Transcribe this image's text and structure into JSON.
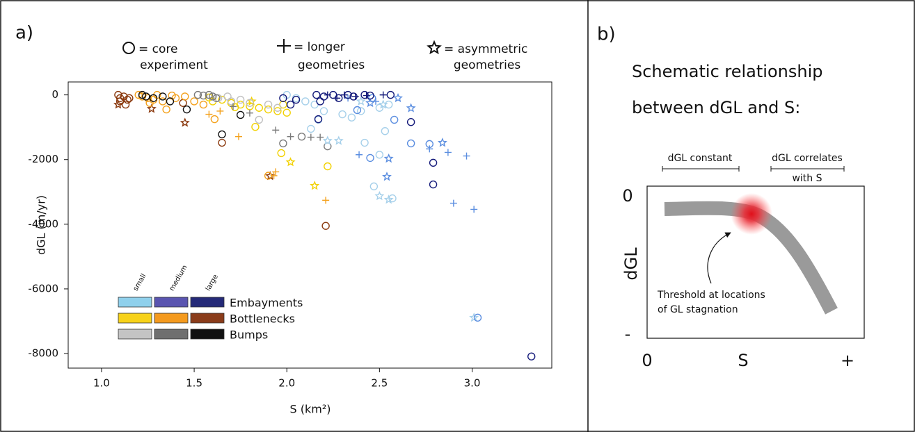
{
  "chart_data": {
    "type": "scatter",
    "panel_label": "a)",
    "xlabel": "S (km²)",
    "ylabel": "dGL (m/yr)",
    "xlim": [
      0.82,
      3.43
    ],
    "ylim": [
      -8450,
      400
    ],
    "xticks": [
      {
        "value": 1,
        "label": "1.0"
      },
      1.5,
      {
        "value": 2,
        "label": "2.0"
      },
      2.5,
      {
        "value": 3,
        "label": "3.0"
      }
    ],
    "yticks": [
      0,
      -2000,
      -4000,
      -6000,
      -8000
    ],
    "marker_legend": [
      {
        "marker": "circle",
        "lines": [
          "= core",
          "experiment"
        ]
      },
      {
        "marker": "plus",
        "lines": [
          "= longer",
          "geometries"
        ]
      },
      {
        "marker": "star",
        "lines": [
          "= asymmetric",
          "geometries"
        ]
      }
    ],
    "legend": {
      "columns": [
        "small",
        "medium",
        "large"
      ],
      "rows": [
        {
          "label": "Embayments",
          "colors": [
            "#8fd0ec",
            "#5a55b0",
            "#252a78"
          ]
        },
        {
          "label": "Bottlenecks",
          "colors": [
            "#f7d21a",
            "#f49a1e",
            "#8a3c1a"
          ]
        },
        {
          "label": "Bumps",
          "colors": [
            "#c4c4c4",
            "#6f6f6f",
            "#111111"
          ]
        }
      ]
    },
    "series": [
      {
        "color": "#8b3a0f",
        "marker": "circle",
        "x": [
          1.09,
          1.1,
          1.1,
          1.12,
          1.13,
          1.14,
          1.15,
          1.44,
          1.65,
          2.21
        ],
        "values": [
          0,
          -100,
          -200,
          -50,
          -300,
          -150,
          -100,
          -250,
          -1480,
          -4050
        ]
      },
      {
        "color": "#8b3a0f",
        "marker": "star",
        "x": [
          1.09,
          1.27,
          1.45,
          1.91
        ],
        "values": [
          -300,
          -430,
          -860,
          -2510
        ]
      },
      {
        "color": "#f4a11c",
        "marker": "circle",
        "x": [
          1.2,
          1.22,
          1.25,
          1.28,
          1.3,
          1.33,
          1.35,
          1.4,
          1.45,
          1.5,
          1.55,
          1.61,
          1.9,
          1.26,
          1.38
        ],
        "values": [
          0,
          -50,
          -100,
          -150,
          0,
          -200,
          -450,
          -100,
          -50,
          -200,
          -300,
          -750,
          -2500,
          -250,
          -20
        ]
      },
      {
        "color": "#f4a11c",
        "marker": "plus",
        "x": [
          1.58,
          1.64,
          1.74,
          1.94,
          2.21,
          1.93
        ],
        "values": [
          -600,
          -500,
          -1290,
          -2380,
          -3260,
          -2500
        ]
      },
      {
        "color": "#f2d100",
        "marker": "circle",
        "x": [
          1.6,
          1.65,
          1.7,
          1.75,
          1.8,
          1.85,
          1.9,
          1.95,
          1.98,
          2.0,
          1.83,
          1.97,
          2.22,
          1.58,
          1.72
        ],
        "values": [
          -200,
          -150,
          -250,
          -300,
          -350,
          -400,
          -450,
          -500,
          -300,
          -550,
          -990,
          -1800,
          -2210,
          -80,
          -380
        ]
      },
      {
        "color": "#f2d100",
        "marker": "star",
        "x": [
          2.02,
          2.15,
          1.81
        ],
        "values": [
          -2080,
          -2810,
          -200
        ]
      },
      {
        "color": "#c0c0c0",
        "marker": "circle",
        "x": [
          1.63,
          1.7,
          1.8,
          1.85,
          1.9,
          1.68,
          1.75,
          1.95
        ],
        "values": [
          -100,
          -200,
          -250,
          -770,
          -300,
          -50,
          -150,
          -400
        ]
      },
      {
        "color": "#7a7a7a",
        "marker": "circle",
        "x": [
          1.52,
          1.55,
          1.58,
          1.6,
          1.62,
          1.98,
          2.08,
          2.22
        ],
        "values": [
          0,
          -20,
          0,
          -50,
          -100,
          -1500,
          -1290,
          -1590
        ]
      },
      {
        "color": "#7a7a7a",
        "marker": "plus",
        "x": [
          1.71,
          1.8,
          1.94,
          2.02,
          2.13,
          2.18
        ],
        "values": [
          -360,
          -560,
          -1090,
          -1290,
          -1310,
          -1310
        ]
      },
      {
        "color": "#111111",
        "marker": "circle",
        "x": [
          1.22,
          1.24,
          1.28,
          1.33,
          1.37,
          1.46,
          1.65,
          1.75
        ],
        "values": [
          0,
          -50,
          -100,
          -50,
          -200,
          -450,
          -1220,
          -620
        ]
      },
      {
        "color": "#a6d0ea",
        "marker": "circle",
        "x": [
          2.0,
          2.05,
          2.1,
          2.15,
          2.2,
          2.3,
          2.35,
          2.4,
          2.5,
          2.55,
          2.42,
          2.5,
          2.53,
          2.47,
          2.57,
          2.13,
          2.17
        ],
        "values": [
          0,
          -100,
          -200,
          -300,
          -500,
          -600,
          -700,
          -500,
          -400,
          -300,
          -1480,
          -1850,
          -1120,
          -2830,
          -3200,
          -1050,
          -770
        ]
      },
      {
        "color": "#a6d0ea",
        "marker": "star",
        "x": [
          2.22,
          2.28,
          2.5,
          2.52,
          2.55,
          3.01,
          2.4
        ],
        "values": [
          -1420,
          -1420,
          -3130,
          -300,
          -3240,
          -6890,
          -200
        ]
      },
      {
        "color": "#5b8ee0",
        "marker": "circle",
        "x": [
          2.38,
          2.46,
          2.58,
          2.77,
          2.45,
          3.03,
          2.67
        ],
        "values": [
          -470,
          -100,
          -770,
          -1520,
          -1950,
          -6890,
          -1500
        ]
      },
      {
        "color": "#5b8ee0",
        "marker": "plus",
        "x": [
          2.39,
          2.77,
          2.87,
          2.97,
          2.9,
          3.01,
          2.33,
          2.48
        ],
        "values": [
          -1850,
          -1670,
          -1780,
          -1890,
          -3350,
          -3540,
          -100,
          -200
        ]
      },
      {
        "color": "#5b8ee0",
        "marker": "star",
        "x": [
          2.67,
          2.54,
          2.55,
          2.84,
          2.6,
          2.45
        ],
        "values": [
          -410,
          -2530,
          -1970,
          -1480,
          -100,
          -250
        ]
      },
      {
        "color": "#141a7a",
        "marker": "circle",
        "x": [
          2.16,
          2.2,
          2.25,
          2.28,
          2.33,
          2.36,
          2.42,
          2.45,
          2.56,
          2.18,
          2.02,
          2.05,
          1.98,
          2.17,
          2.67,
          2.79,
          2.79,
          3.32
        ],
        "values": [
          0,
          -50,
          0,
          -100,
          0,
          -50,
          0,
          -20,
          0,
          -200,
          -300,
          -150,
          -100,
          -750,
          -840,
          -2100,
          -2770,
          -8090
        ]
      },
      {
        "color": "#141a7a",
        "marker": "plus",
        "x": [
          2.22,
          2.27,
          2.31,
          2.37,
          2.43,
          2.52
        ],
        "values": [
          0,
          -100,
          0,
          -50,
          -20,
          0
        ]
      }
    ]
  },
  "schematic": {
    "panel_label": "b)",
    "title_lines": [
      "Schematic relationship",
      "between dGL and S:"
    ],
    "bracket_left": "dGL constant",
    "bracket_right": [
      "dGL correlates",
      "with S"
    ],
    "y_label": "dGL",
    "y_top": "0",
    "y_bottom": "-",
    "x_labels": [
      "0",
      "S",
      "+"
    ],
    "annotation_lines": [
      "Threshold at locations",
      "of GL stagnation"
    ]
  }
}
